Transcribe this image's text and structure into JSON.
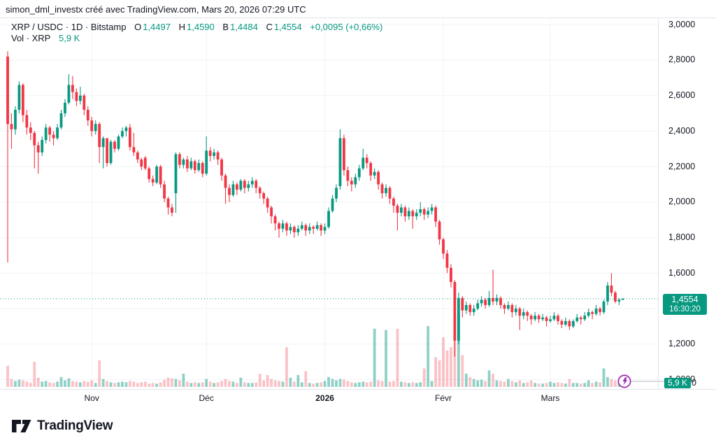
{
  "header": {
    "attribution": "simon_dml_investx créé avec TradingView.com, Mars 20, 2026 07:29 UTC"
  },
  "legend": {
    "title": "XRP / USDC · 1D · Bitstamp",
    "open_label": "O",
    "open": "1,4497",
    "high_label": "H",
    "high": "1,4590",
    "low_label": "B",
    "low": "1,4484",
    "close_label": "C",
    "close": "1,4554",
    "change": "+0,0095 (+0,66%)",
    "volume_label": "Vol · XRP",
    "volume_value": "5,9 K"
  },
  "price_badge": {
    "price": "1,4554",
    "countdown": "16:30:20"
  },
  "volume_badge": {
    "value": "5,9 K"
  },
  "axis_peek_digit": "0",
  "footer": {
    "logo_text": "TradingView"
  },
  "colors": {
    "up": "#089981",
    "down": "#F23645",
    "up_vol": "rgba(8,153,129,0.45)",
    "down_vol": "rgba(242,54,69,0.30)",
    "grid": "#f0f3fa",
    "border": "#e0e3eb",
    "connector": "#b2b5be",
    "purple": "#9C27B0",
    "badge": "#089981"
  },
  "chart_data": {
    "type": "candlestick",
    "title": "XRP / USDC · 1D · Bitstamp",
    "symbol": "XRP/USDC",
    "interval": "1D",
    "exchange": "Bitstamp",
    "legend_note": "volume pane overlaid at bottom, Vol · XRP = 5.9 K",
    "ylim": [
      0.947,
      3.036
    ],
    "grid": true,
    "last_price": 1.4554,
    "y_axis_labels": [
      {
        "text": "3,0000",
        "value": 3.0
      },
      {
        "text": "2,8000",
        "value": 2.8
      },
      {
        "text": "2,6000",
        "value": 2.6
      },
      {
        "text": "2,4000",
        "value": 2.4
      },
      {
        "text": "2,2000",
        "value": 2.2
      },
      {
        "text": "2,0000",
        "value": 2.0
      },
      {
        "text": "1,8000",
        "value": 1.8
      },
      {
        "text": "1,6000",
        "value": 1.6
      },
      {
        "text": "1,2000",
        "value": 1.2
      },
      {
        "text": "1,0000",
        "value": 1.0
      }
    ],
    "grid_values": [
      3.0,
      2.8,
      2.6,
      2.4,
      2.2,
      2.0,
      1.8,
      1.6,
      1.4,
      1.2,
      1.0
    ],
    "x_ticks": [
      {
        "label": "Nov",
        "index": 22,
        "bold": false
      },
      {
        "label": "Déc",
        "index": 52,
        "bold": false
      },
      {
        "label": "2026",
        "index": 83,
        "bold": true
      },
      {
        "label": "Févr",
        "index": 114,
        "bold": false
      },
      {
        "label": "Mars",
        "index": 142,
        "bold": false
      }
    ],
    "max_volume_k": 110,
    "candles_format": [
      "open",
      "high",
      "low",
      "close",
      "volume_k"
    ],
    "candles": [
      [
        2.82,
        2.85,
        1.66,
        2.44,
        32
      ],
      [
        2.44,
        2.5,
        2.3,
        2.41,
        12
      ],
      [
        2.41,
        2.54,
        2.38,
        2.52,
        9
      ],
      [
        2.52,
        2.68,
        2.5,
        2.66,
        11
      ],
      [
        2.66,
        2.67,
        2.45,
        2.49,
        10
      ],
      [
        2.49,
        2.52,
        2.38,
        2.42,
        8
      ],
      [
        2.42,
        2.45,
        2.35,
        2.39,
        6
      ],
      [
        2.39,
        2.4,
        2.19,
        2.32,
        38
      ],
      [
        2.32,
        2.34,
        2.16,
        2.28,
        14
      ],
      [
        2.28,
        2.37,
        2.26,
        2.35,
        8
      ],
      [
        2.35,
        2.44,
        2.33,
        2.42,
        9
      ],
      [
        2.42,
        2.43,
        2.34,
        2.38,
        7
      ],
      [
        2.38,
        2.4,
        2.32,
        2.36,
        6
      ],
      [
        2.36,
        2.44,
        2.35,
        2.42,
        8
      ],
      [
        2.42,
        2.52,
        2.41,
        2.5,
        15
      ],
      [
        2.5,
        2.58,
        2.48,
        2.56,
        10
      ],
      [
        2.56,
        2.72,
        2.55,
        2.66,
        13
      ],
      [
        2.66,
        2.71,
        2.58,
        2.62,
        9
      ],
      [
        2.62,
        2.64,
        2.54,
        2.57,
        8
      ],
      [
        2.57,
        2.65,
        2.55,
        2.6,
        7
      ],
      [
        2.6,
        2.61,
        2.49,
        2.52,
        9
      ],
      [
        2.52,
        2.54,
        2.43,
        2.46,
        8
      ],
      [
        2.46,
        2.48,
        2.37,
        2.4,
        10
      ],
      [
        2.4,
        2.46,
        2.38,
        2.44,
        6
      ],
      [
        2.44,
        2.45,
        2.22,
        2.31,
        40
      ],
      [
        2.31,
        2.37,
        2.19,
        2.36,
        12
      ],
      [
        2.36,
        2.36,
        2.2,
        2.22,
        9
      ],
      [
        2.22,
        2.35,
        2.21,
        2.34,
        7
      ],
      [
        2.34,
        2.35,
        2.28,
        2.3,
        6
      ],
      [
        2.3,
        2.38,
        2.29,
        2.37,
        7
      ],
      [
        2.37,
        2.42,
        2.36,
        2.4,
        8
      ],
      [
        2.4,
        2.43,
        2.37,
        2.42,
        7
      ],
      [
        2.42,
        2.44,
        2.29,
        2.31,
        9
      ],
      [
        2.31,
        2.39,
        2.26,
        2.28,
        8
      ],
      [
        2.28,
        2.29,
        2.22,
        2.24,
        6
      ],
      [
        2.24,
        2.25,
        2.18,
        2.2,
        7
      ],
      [
        2.25,
        2.26,
        2.18,
        2.19,
        8
      ],
      [
        2.19,
        2.2,
        2.11,
        2.13,
        5
      ],
      [
        2.13,
        2.15,
        2.09,
        2.11,
        6
      ],
      [
        2.11,
        2.21,
        2.1,
        2.2,
        5
      ],
      [
        2.2,
        2.21,
        2.08,
        2.1,
        7
      ],
      [
        2.1,
        2.12,
        2.0,
        2.02,
        11
      ],
      [
        2.02,
        2.03,
        1.93,
        1.97,
        14
      ],
      [
        1.97,
        1.99,
        1.92,
        1.94,
        13
      ],
      [
        2.05,
        2.28,
        1.94,
        2.27,
        12
      ],
      [
        2.27,
        2.28,
        2.19,
        2.21,
        10
      ],
      [
        2.21,
        2.25,
        2.19,
        2.24,
        20
      ],
      [
        2.24,
        2.26,
        2.17,
        2.19,
        8
      ],
      [
        2.19,
        2.25,
        2.18,
        2.23,
        6
      ],
      [
        2.23,
        2.24,
        2.16,
        2.18,
        7
      ],
      [
        2.18,
        2.24,
        2.17,
        2.22,
        6
      ],
      [
        2.22,
        2.23,
        2.14,
        2.16,
        7
      ],
      [
        2.16,
        2.37,
        2.15,
        2.29,
        12
      ],
      [
        2.29,
        2.31,
        2.23,
        2.26,
        8
      ],
      [
        2.26,
        2.3,
        2.24,
        2.28,
        6
      ],
      [
        2.28,
        2.29,
        2.21,
        2.24,
        7
      ],
      [
        2.24,
        2.25,
        2.12,
        2.15,
        9
      ],
      [
        2.15,
        2.16,
        1.99,
        2.08,
        12
      ],
      [
        2.08,
        2.1,
        2.0,
        2.04,
        9
      ],
      [
        2.04,
        2.12,
        2.03,
        2.1,
        8
      ],
      [
        2.1,
        2.11,
        2.04,
        2.07,
        6
      ],
      [
        2.07,
        2.13,
        2.06,
        2.12,
        14
      ],
      [
        2.12,
        2.13,
        2.05,
        2.08,
        7
      ],
      [
        2.08,
        2.12,
        2.06,
        2.1,
        6
      ],
      [
        2.1,
        2.14,
        2.08,
        2.12,
        6
      ],
      [
        2.12,
        2.13,
        2.05,
        2.08,
        7
      ],
      [
        2.08,
        2.09,
        2.02,
        2.05,
        20
      ],
      [
        2.05,
        2.06,
        1.99,
        2.02,
        10
      ],
      [
        2.02,
        2.03,
        1.94,
        1.97,
        18
      ],
      [
        1.97,
        1.98,
        1.88,
        1.92,
        12
      ],
      [
        1.92,
        1.93,
        1.84,
        1.88,
        10
      ],
      [
        1.88,
        1.89,
        1.8,
        1.85,
        9
      ],
      [
        1.85,
        1.9,
        1.83,
        1.88,
        8
      ],
      [
        1.88,
        1.89,
        1.81,
        1.84,
        60
      ],
      [
        1.84,
        1.88,
        1.82,
        1.86,
        14
      ],
      [
        1.86,
        1.87,
        1.8,
        1.83,
        8
      ],
      [
        1.83,
        1.87,
        1.81,
        1.85,
        18
      ],
      [
        1.85,
        1.89,
        1.84,
        1.87,
        7
      ],
      [
        1.87,
        1.88,
        1.81,
        1.84,
        24
      ],
      [
        1.84,
        1.88,
        1.82,
        1.86,
        6
      ],
      [
        1.86,
        1.87,
        1.82,
        1.85,
        5
      ],
      [
        1.85,
        1.89,
        1.84,
        1.87,
        6
      ],
      [
        1.87,
        1.88,
        1.81,
        1.84,
        7
      ],
      [
        1.84,
        1.88,
        1.82,
        1.86,
        9
      ],
      [
        1.86,
        1.97,
        1.85,
        1.95,
        15
      ],
      [
        1.95,
        2.04,
        1.94,
        2.02,
        12
      ],
      [
        2.02,
        2.1,
        2.0,
        2.08,
        10
      ],
      [
        2.09,
        2.41,
        2.07,
        2.36,
        12
      ],
      [
        2.36,
        2.38,
        2.15,
        2.18,
        11
      ],
      [
        2.18,
        2.2,
        2.09,
        2.12,
        9
      ],
      [
        2.12,
        2.14,
        2.06,
        2.1,
        7
      ],
      [
        2.1,
        2.16,
        2.08,
        2.14,
        6
      ],
      [
        2.14,
        2.21,
        2.12,
        2.19,
        7
      ],
      [
        2.19,
        2.3,
        2.18,
        2.25,
        8
      ],
      [
        2.25,
        2.27,
        2.19,
        2.22,
        7
      ],
      [
        2.22,
        2.23,
        2.12,
        2.15,
        8
      ],
      [
        2.15,
        2.19,
        2.13,
        2.17,
        88
      ],
      [
        2.17,
        2.18,
        2.07,
        2.1,
        10
      ],
      [
        2.1,
        2.11,
        2.02,
        2.05,
        9
      ],
      [
        2.05,
        2.1,
        2.03,
        2.08,
        86
      ],
      [
        2.08,
        2.09,
        1.99,
        2.02,
        8
      ],
      [
        2.02,
        2.03,
        1.94,
        1.98,
        9
      ],
      [
        1.98,
        1.99,
        1.84,
        1.94,
        88
      ],
      [
        1.94,
        1.99,
        1.92,
        1.97,
        8
      ],
      [
        1.97,
        1.98,
        1.89,
        1.92,
        7
      ],
      [
        1.92,
        1.97,
        1.9,
        1.95,
        6
      ],
      [
        1.95,
        1.96,
        1.85,
        1.92,
        7
      ],
      [
        1.92,
        1.96,
        1.9,
        1.94,
        6
      ],
      [
        1.94,
        2.0,
        1.92,
        1.96,
        7
      ],
      [
        1.96,
        1.97,
        1.9,
        1.93,
        28
      ],
      [
        1.93,
        1.97,
        1.91,
        1.95,
        92
      ],
      [
        1.95,
        1.99,
        1.93,
        1.97,
        9
      ],
      [
        1.97,
        1.98,
        1.86,
        1.89,
        45
      ],
      [
        1.89,
        1.9,
        1.76,
        1.79,
        40
      ],
      [
        1.79,
        1.8,
        1.68,
        1.71,
        75
      ],
      [
        1.71,
        1.73,
        1.6,
        1.63,
        55
      ],
      [
        1.63,
        1.65,
        1.52,
        1.55,
        60
      ],
      [
        1.55,
        1.56,
        1.13,
        1.22,
        105
      ],
      [
        1.22,
        1.49,
        1.2,
        1.46,
        110
      ],
      [
        1.46,
        1.47,
        1.35,
        1.39,
        48
      ],
      [
        1.39,
        1.44,
        1.37,
        1.42,
        20
      ],
      [
        1.42,
        1.43,
        1.36,
        1.38,
        15
      ],
      [
        1.38,
        1.42,
        1.36,
        1.4,
        12
      ],
      [
        1.4,
        1.45,
        1.39,
        1.43,
        10
      ],
      [
        1.43,
        1.47,
        1.41,
        1.45,
        11
      ],
      [
        1.45,
        1.46,
        1.4,
        1.42,
        9
      ],
      [
        1.42,
        1.5,
        1.41,
        1.46,
        25
      ],
      [
        1.46,
        1.62,
        1.42,
        1.44,
        20
      ],
      [
        1.44,
        1.48,
        1.42,
        1.46,
        10
      ],
      [
        1.46,
        1.47,
        1.4,
        1.42,
        9
      ],
      [
        1.42,
        1.43,
        1.37,
        1.4,
        8
      ],
      [
        1.4,
        1.44,
        1.39,
        1.42,
        12
      ],
      [
        1.42,
        1.43,
        1.35,
        1.38,
        9
      ],
      [
        1.38,
        1.42,
        1.36,
        1.4,
        7
      ],
      [
        1.4,
        1.41,
        1.28,
        1.36,
        10
      ],
      [
        1.36,
        1.4,
        1.34,
        1.38,
        6
      ],
      [
        1.38,
        1.39,
        1.33,
        1.36,
        7
      ],
      [
        1.36,
        1.37,
        1.31,
        1.34,
        10
      ],
      [
        1.34,
        1.38,
        1.33,
        1.36,
        6
      ],
      [
        1.36,
        1.37,
        1.32,
        1.34,
        5
      ],
      [
        1.34,
        1.37,
        1.33,
        1.35,
        5
      ],
      [
        1.35,
        1.36,
        1.3,
        1.33,
        6
      ],
      [
        1.33,
        1.36,
        1.32,
        1.34,
        8
      ],
      [
        1.34,
        1.38,
        1.33,
        1.36,
        6
      ],
      [
        1.36,
        1.37,
        1.31,
        1.33,
        7
      ],
      [
        1.33,
        1.34,
        1.29,
        1.31,
        6
      ],
      [
        1.31,
        1.35,
        1.3,
        1.33,
        5
      ],
      [
        1.33,
        1.34,
        1.28,
        1.3,
        12
      ],
      [
        1.3,
        1.34,
        1.29,
        1.33,
        6
      ],
      [
        1.33,
        1.37,
        1.32,
        1.35,
        6
      ],
      [
        1.35,
        1.36,
        1.31,
        1.34,
        5
      ],
      [
        1.34,
        1.38,
        1.33,
        1.36,
        6
      ],
      [
        1.36,
        1.4,
        1.35,
        1.38,
        10
      ],
      [
        1.38,
        1.39,
        1.34,
        1.37,
        6
      ],
      [
        1.37,
        1.42,
        1.36,
        1.4,
        8
      ],
      [
        1.4,
        1.41,
        1.36,
        1.38,
        7
      ],
      [
        1.38,
        1.45,
        1.37,
        1.44,
        28
      ],
      [
        1.44,
        1.55,
        1.42,
        1.53,
        15
      ],
      [
        1.53,
        1.6,
        1.47,
        1.49,
        12
      ],
      [
        1.49,
        1.5,
        1.43,
        1.44,
        10
      ],
      [
        1.44,
        1.46,
        1.42,
        1.45,
        7
      ],
      [
        1.4497,
        1.459,
        1.4484,
        1.4554,
        5.9
      ]
    ]
  }
}
